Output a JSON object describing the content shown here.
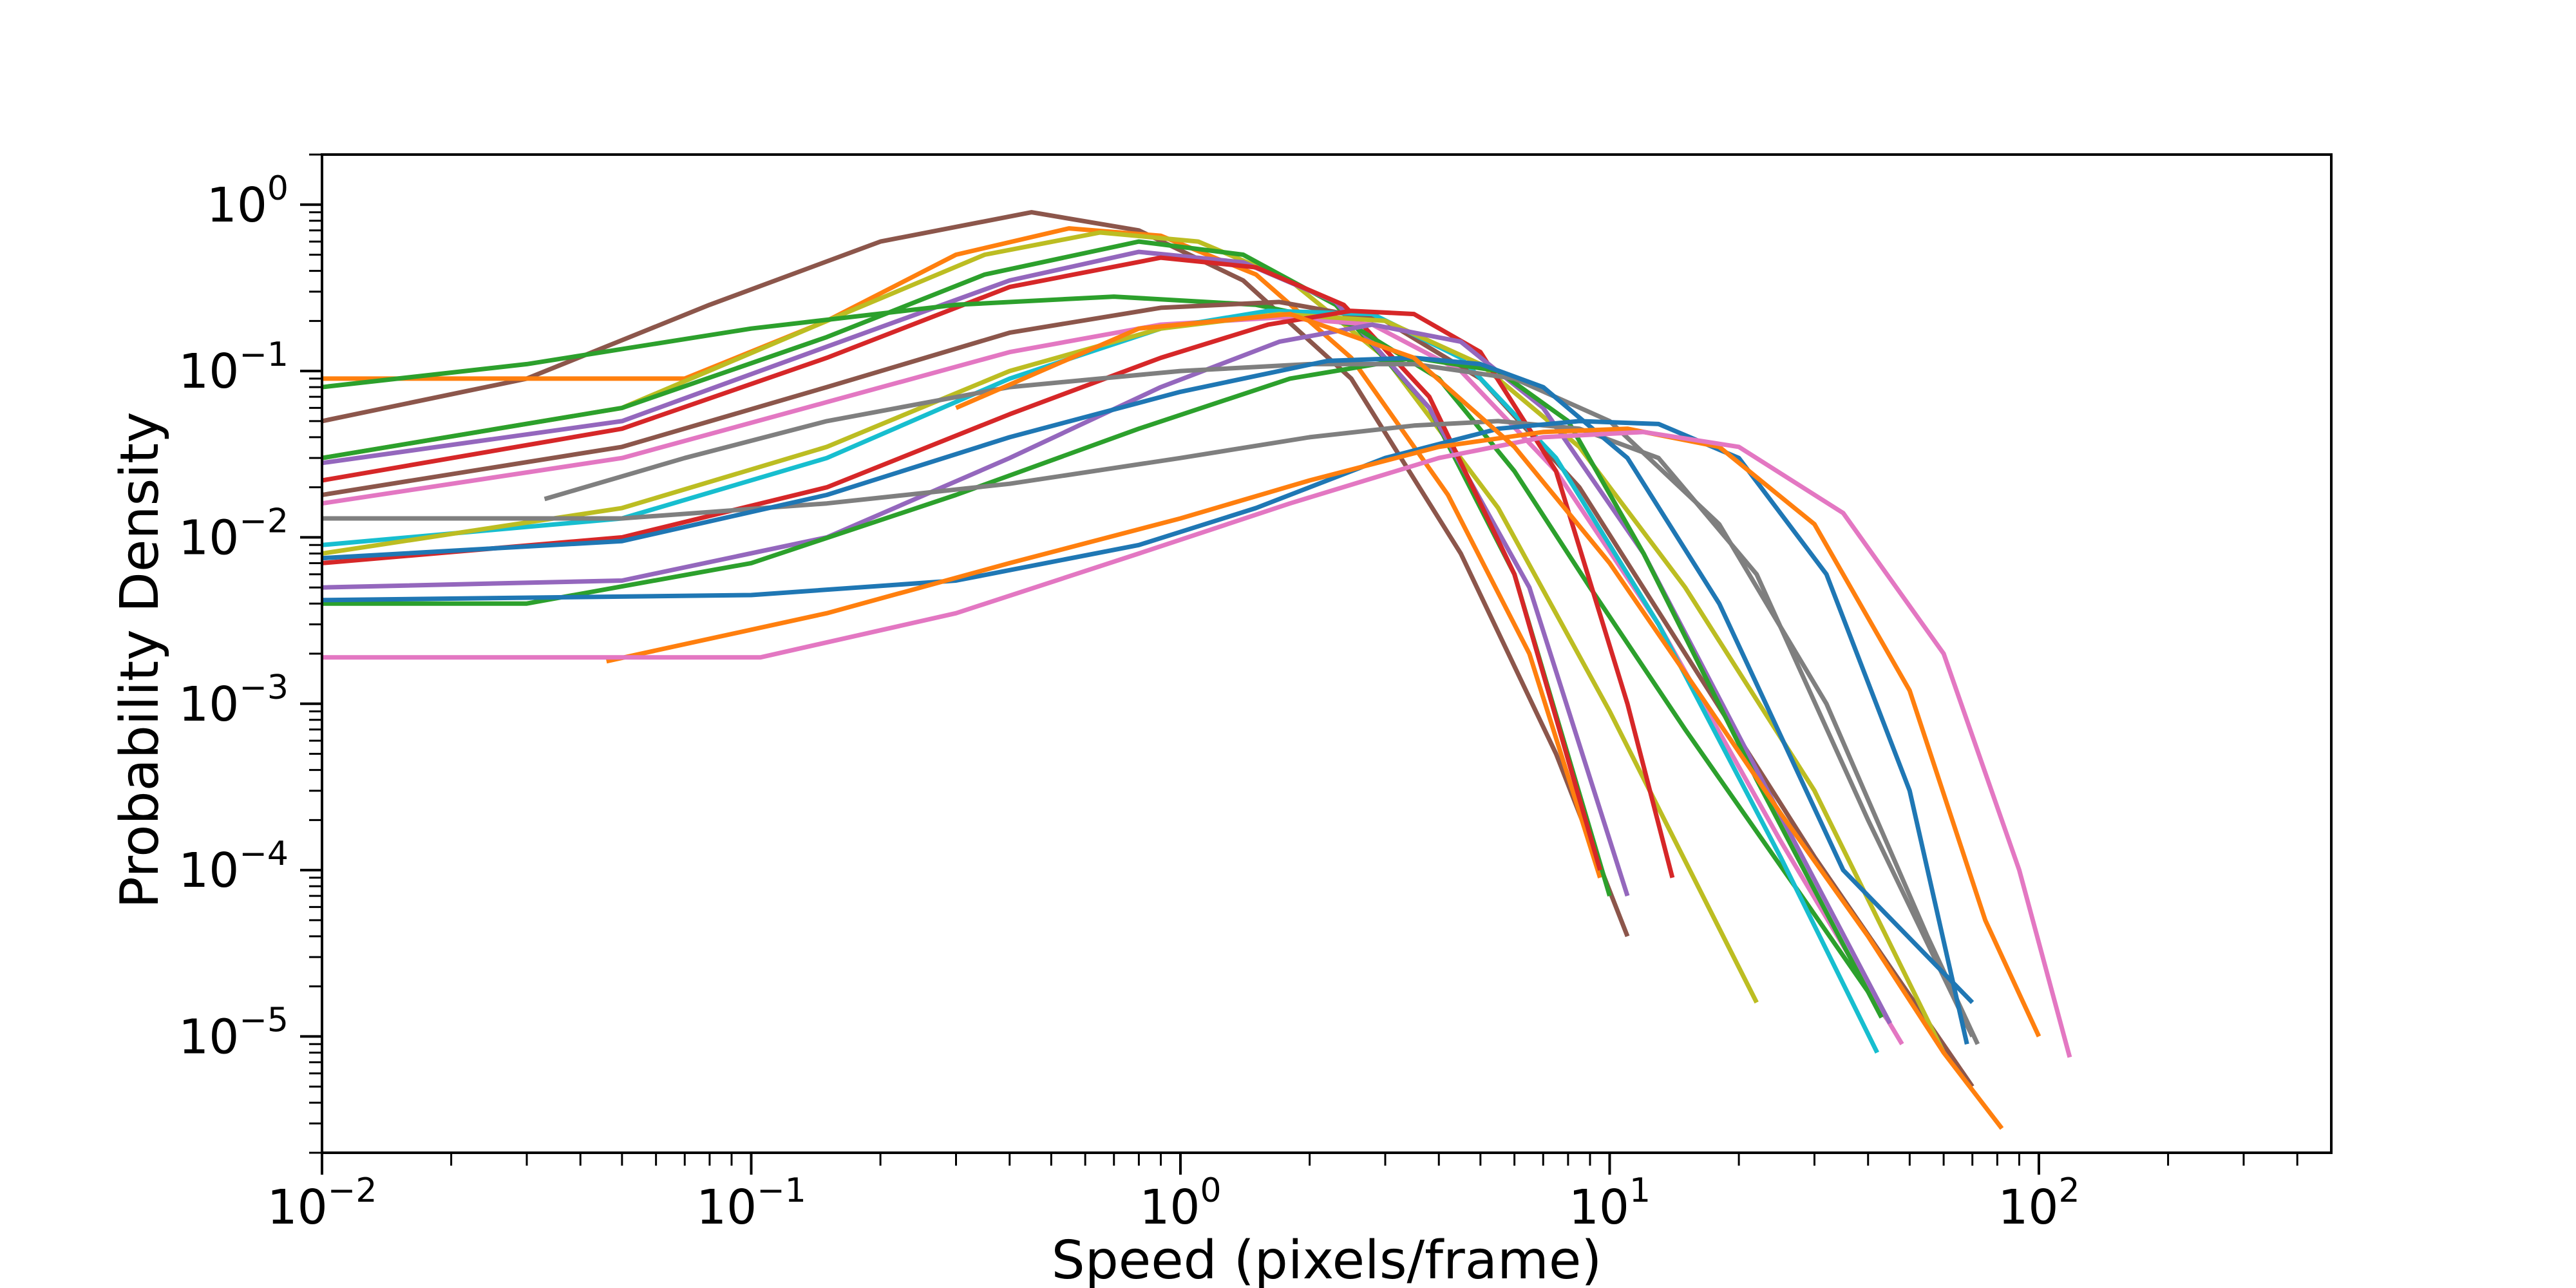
{
  "chart_data": {
    "type": "line",
    "title": "",
    "xlabel": "Speed (pixels/frame)",
    "ylabel": "Probability Density",
    "xscale": "log",
    "yscale": "log",
    "xlim": [
      0.01,
      480
    ],
    "ylim": [
      2e-06,
      2
    ],
    "grid": false,
    "legend": "none",
    "x_ticks": [
      {
        "value": 0.01,
        "base": "10",
        "exp": "−2"
      },
      {
        "value": 0.1,
        "base": "10",
        "exp": "−1"
      },
      {
        "value": 1,
        "base": "10",
        "exp": "0"
      },
      {
        "value": 10,
        "base": "10",
        "exp": "1"
      },
      {
        "value": 100,
        "base": "10",
        "exp": "2"
      }
    ],
    "y_ticks": [
      {
        "value": 1,
        "base": "10",
        "exp": "0"
      },
      {
        "value": 0.1,
        "base": "10",
        "exp": "−1"
      },
      {
        "value": 0.01,
        "base": "10",
        "exp": "−2"
      },
      {
        "value": 0.001,
        "base": "10",
        "exp": "−3"
      },
      {
        "value": 0.0001,
        "base": "10",
        "exp": "−4"
      },
      {
        "value": 1e-05,
        "base": "10",
        "exp": "−5"
      }
    ],
    "series": [
      {
        "color": "#8c564b",
        "x": [
          0.01,
          0.03,
          0.08,
          0.2,
          0.45,
          0.8,
          1.4,
          2.5,
          4.5,
          7.5,
          11
        ],
        "y": [
          0.05,
          0.09,
          0.25,
          0.6,
          0.9,
          0.7,
          0.35,
          0.09,
          0.008,
          0.0005,
          4e-05
        ]
      },
      {
        "color": "#ff7f0e",
        "x": [
          0.01,
          0.07,
          0.15,
          0.3,
          0.55,
          0.9,
          1.5,
          2.5,
          4.2,
          6.5,
          9.5
        ],
        "y": [
          0.09,
          0.09,
          0.2,
          0.5,
          0.72,
          0.65,
          0.38,
          0.12,
          0.018,
          0.002,
          9e-05
        ]
      },
      {
        "color": "#bcbd22",
        "x": [
          0.01,
          0.05,
          0.15,
          0.35,
          0.65,
          1.1,
          1.8,
          3.0,
          5.5,
          10,
          22
        ],
        "y": [
          0.03,
          0.06,
          0.2,
          0.5,
          0.68,
          0.6,
          0.35,
          0.12,
          0.015,
          0.0009,
          1.6e-05
        ]
      },
      {
        "color": "#2ca02c",
        "x": [
          0.01,
          0.05,
          0.15,
          0.35,
          0.8,
          1.4,
          2.3,
          3.8,
          6.0,
          10
        ],
        "y": [
          0.03,
          0.06,
          0.16,
          0.38,
          0.6,
          0.5,
          0.25,
          0.06,
          0.006,
          7e-05
        ]
      },
      {
        "color": "#9467bd",
        "x": [
          0.01,
          0.05,
          0.15,
          0.4,
          0.8,
          1.4,
          2.3,
          3.8,
          6.5,
          11
        ],
        "y": [
          0.028,
          0.05,
          0.14,
          0.35,
          0.52,
          0.45,
          0.26,
          0.06,
          0.005,
          7e-05
        ]
      },
      {
        "color": "#d62728",
        "x": [
          0.01,
          0.05,
          0.15,
          0.4,
          0.9,
          1.5,
          2.4,
          3.8,
          6.0,
          9.5
        ],
        "y": [
          0.022,
          0.045,
          0.12,
          0.32,
          0.48,
          0.42,
          0.25,
          0.07,
          0.006,
          0.0001
        ]
      },
      {
        "color": "#2ca02c",
        "x": [
          0.01,
          0.03,
          0.1,
          0.3,
          0.7,
          1.5,
          2.5,
          4.0,
          6.0,
          9.0,
          15,
          28,
          45
        ],
        "y": [
          0.08,
          0.11,
          0.18,
          0.25,
          0.28,
          0.25,
          0.19,
          0.09,
          0.025,
          0.005,
          0.0007,
          7e-05,
          1.2e-05
        ]
      },
      {
        "color": "#8c564b",
        "x": [
          0.01,
          0.05,
          0.15,
          0.4,
          0.9,
          1.7,
          3.0,
          5.0,
          8.5,
          15,
          30,
          70
        ],
        "y": [
          0.018,
          0.035,
          0.08,
          0.17,
          0.24,
          0.26,
          0.2,
          0.09,
          0.02,
          0.002,
          0.00012,
          5e-06
        ]
      },
      {
        "color": "#e377c2",
        "x": [
          0.01,
          0.05,
          0.15,
          0.4,
          0.9,
          1.7,
          2.8,
          4.5,
          7.5,
          13,
          25,
          48
        ],
        "y": [
          0.016,
          0.03,
          0.065,
          0.13,
          0.19,
          0.21,
          0.19,
          0.1,
          0.025,
          0.003,
          0.00015,
          9e-06
        ]
      },
      {
        "color": "#17becf",
        "x": [
          0.01,
          0.05,
          0.15,
          0.4,
          0.9,
          1.6,
          2.8,
          4.5,
          7.5,
          13,
          25,
          42
        ],
        "y": [
          0.009,
          0.013,
          0.03,
          0.09,
          0.18,
          0.23,
          0.22,
          0.12,
          0.03,
          0.003,
          0.00012,
          8e-06
        ]
      },
      {
        "color": "#bcbd22",
        "x": [
          0.01,
          0.05,
          0.15,
          0.4,
          0.9,
          1.7,
          3.0,
          5.0,
          8.5,
          15,
          30,
          60
        ],
        "y": [
          0.008,
          0.015,
          0.035,
          0.1,
          0.18,
          0.22,
          0.2,
          0.11,
          0.035,
          0.005,
          0.0003,
          8e-06
        ]
      },
      {
        "color": "#d62728",
        "x": [
          0.01,
          0.05,
          0.15,
          0.4,
          0.9,
          1.6,
          2.5,
          3.5,
          5.0,
          7.5,
          11,
          14
        ],
        "y": [
          0.007,
          0.01,
          0.02,
          0.055,
          0.12,
          0.19,
          0.23,
          0.22,
          0.13,
          0.025,
          0.001,
          9e-05
        ]
      },
      {
        "color": "#9467bd",
        "x": [
          0.01,
          0.05,
          0.15,
          0.4,
          0.9,
          1.7,
          2.8,
          4.5,
          7.0,
          12,
          22,
          45
        ],
        "y": [
          0.005,
          0.0055,
          0.01,
          0.03,
          0.08,
          0.15,
          0.19,
          0.15,
          0.06,
          0.008,
          0.0004,
          1.2e-05
        ]
      },
      {
        "color": "#2ca02c",
        "x": [
          0.01,
          0.03,
          0.1,
          0.3,
          0.8,
          1.8,
          3.5,
          5.5,
          8.0,
          12,
          22,
          43
        ],
        "y": [
          0.004,
          0.004,
          0.007,
          0.018,
          0.045,
          0.09,
          0.12,
          0.1,
          0.05,
          0.008,
          0.00035,
          1.3e-05
        ]
      },
      {
        "color": "#7f7f7f",
        "x": [
          0.01,
          0.05,
          0.15,
          0.4,
          1.0,
          2.0,
          3.5,
          5.5,
          8.5,
          13,
          22,
          40,
          70
        ],
        "y": [
          0.013,
          0.013,
          0.016,
          0.021,
          0.03,
          0.04,
          0.047,
          0.05,
          0.045,
          0.03,
          0.006,
          0.0002,
          1e-05
        ]
      },
      {
        "color": "#7f7f7f",
        "x": [
          0.033,
          0.07,
          0.15,
          0.4,
          1.0,
          2.0,
          3.5,
          6.0,
          10,
          18,
          32,
          55,
          72
        ],
        "y": [
          0.017,
          0.03,
          0.05,
          0.08,
          0.1,
          0.11,
          0.11,
          0.09,
          0.05,
          0.012,
          0.001,
          4e-05,
          9e-06
        ]
      },
      {
        "color": "#1f77b4",
        "x": [
          0.01,
          0.05,
          0.15,
          0.4,
          1.0,
          2.2,
          3.5,
          5.0,
          7.0,
          11,
          18,
          35,
          70
        ],
        "y": [
          0.0075,
          0.0095,
          0.018,
          0.04,
          0.075,
          0.115,
          0.12,
          0.11,
          0.08,
          0.03,
          0.004,
          0.0001,
          1.6e-05
        ]
      },
      {
        "color": "#1f77b4",
        "x": [
          0.01,
          0.1,
          0.3,
          0.8,
          1.5,
          3.0,
          5.5,
          8.5,
          13,
          20,
          32,
          50,
          68
        ],
        "y": [
          0.0042,
          0.0045,
          0.0055,
          0.009,
          0.015,
          0.03,
          0.045,
          0.05,
          0.048,
          0.03,
          0.006,
          0.0003,
          9e-06
        ]
      },
      {
        "color": "#ff7f0e",
        "x": [
          0.046,
          0.15,
          0.4,
          1.0,
          2.0,
          4.0,
          7.0,
          11,
          18,
          30,
          50,
          75,
          100
        ],
        "y": [
          0.0018,
          0.0035,
          0.007,
          0.013,
          0.022,
          0.035,
          0.043,
          0.045,
          0.035,
          0.012,
          0.0012,
          5e-05,
          1e-05
        ]
      },
      {
        "color": "#e377c2",
        "x": [
          0.01,
          0.105,
          0.3,
          0.8,
          1.8,
          4.0,
          7.0,
          12,
          20,
          35,
          60,
          90,
          118
        ],
        "y": [
          0.0019,
          0.0019,
          0.0035,
          0.008,
          0.016,
          0.03,
          0.04,
          0.043,
          0.035,
          0.014,
          0.002,
          0.0001,
          7.5e-06
        ]
      },
      {
        "color": "#ff7f0e",
        "x": [
          0.3,
          0.8,
          1.8,
          3.5,
          6.0,
          10,
          16,
          25,
          40,
          60,
          82
        ],
        "y": [
          0.06,
          0.18,
          0.22,
          0.12,
          0.035,
          0.007,
          0.0012,
          0.00022,
          4e-05,
          8e-06,
          2.8e-06
        ]
      }
    ]
  }
}
